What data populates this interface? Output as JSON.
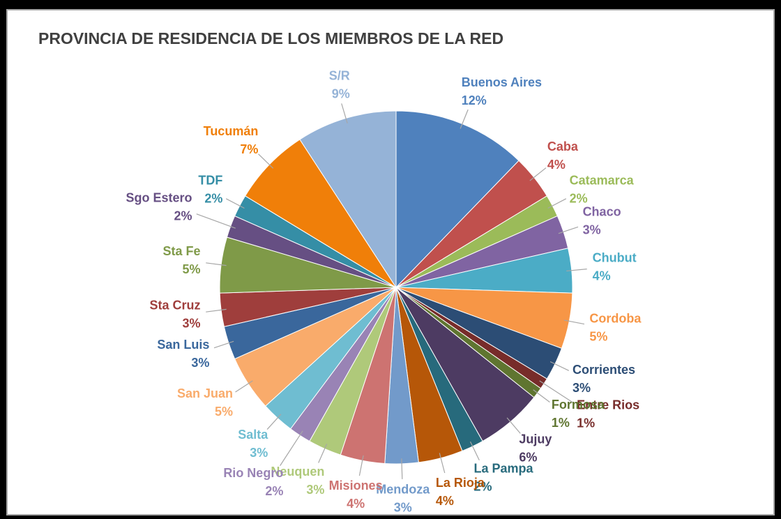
{
  "chart_data": {
    "type": "pie",
    "title": "PROVINCIA DE RESIDENCIA DE LOS MIEMBROS DE LA RED",
    "categories": [
      "Buenos Aires",
      "Caba",
      "Catamarca",
      "Chaco",
      "Chubut",
      "Cordoba",
      "Corrientes",
      "Entre Rios",
      "Formosa",
      "Jujuy",
      "La Pampa",
      "La Rioja",
      "Mendoza",
      "Misiones",
      "Neuquen",
      "Rio Negro",
      "Salta",
      "San Juan",
      "San Luis",
      "Sta Cruz",
      "Sta Fe",
      "Sgo Estero",
      "TDF",
      "Tucumán",
      "S/R"
    ],
    "values": [
      12,
      4,
      2,
      3,
      4,
      5,
      3,
      1,
      1,
      6,
      2,
      4,
      3,
      4,
      3,
      2,
      3,
      5,
      3,
      3,
      5,
      2,
      2,
      7,
      9
    ],
    "value_labels": [
      "12%",
      "4%",
      "2%",
      "3%",
      "4%",
      "5%",
      "3%",
      "1%",
      "1%",
      "6%",
      "2%",
      "4%",
      "3%",
      "4%",
      "3%",
      "2%",
      "3%",
      "5%",
      "3%",
      "3%",
      "5%",
      "2%",
      "2%",
      "7%",
      "9%"
    ],
    "colors": [
      "#4f81bd",
      "#c0504d",
      "#9bbb59",
      "#8064a2",
      "#4bacc6",
      "#f79646",
      "#2c4d75",
      "#772c2a",
      "#5f7530",
      "#4d3b62",
      "#276a7c",
      "#b65708",
      "#729aca",
      "#cd7371",
      "#afc97a",
      "#9983b5",
      "#6fbdd1",
      "#f9ab6b",
      "#3a679c",
      "#9f3e3c",
      "#7f9a48",
      "#664f83",
      "#358ea6",
      "#f07f09",
      "#95b3d7"
    ]
  }
}
